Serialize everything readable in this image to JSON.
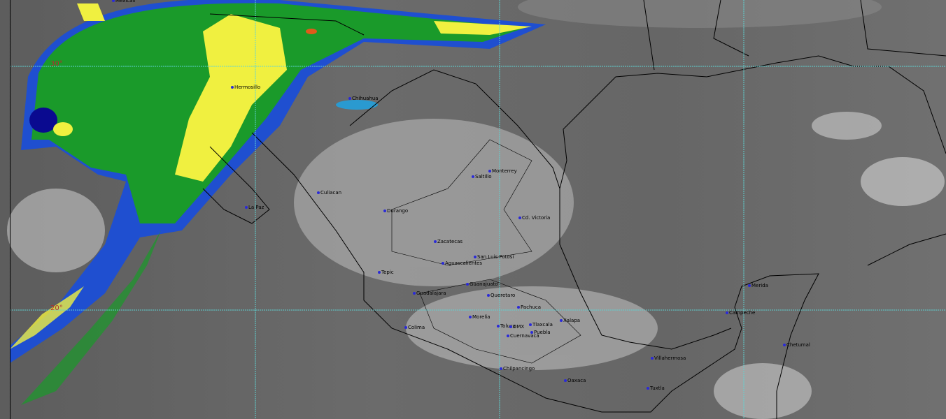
{
  "map": {
    "type": "infrared satellite image",
    "colors": {
      "grid": "#5fd3d3",
      "precip_green": "#1a9a2a",
      "precip_yellow": "#f0f040",
      "precip_blue": "#1f4fd0",
      "precip_dark_blue": "#0a0a90",
      "precip_orange": "#e05a1a",
      "city_dot": "#2a2ad8",
      "coast": "#000000"
    },
    "latitude_labels": [
      "30°",
      "20°"
    ],
    "cities": [
      "Mexicali",
      "Hermosillo",
      "Chihuahua",
      "Culiacan",
      "La Paz",
      "Durango",
      "Monterrey",
      "Saltillo",
      "Cd. Victoria",
      "Zacatecas",
      "San Luis Potosi",
      "Aguascalientes",
      "Tepic",
      "Guanajuato",
      "Guadalajara",
      "Queretaro",
      "Pachuca",
      "Morelia",
      "Colima",
      "Toluca",
      "DMX",
      "Tlaxcala",
      "Puebla",
      "Cuernavaca",
      "Xalapa",
      "Chilpancingo",
      "Oaxaca",
      "Villahermosa",
      "Tuxtla",
      "Campeche",
      "Merida",
      "Chetumal"
    ]
  }
}
